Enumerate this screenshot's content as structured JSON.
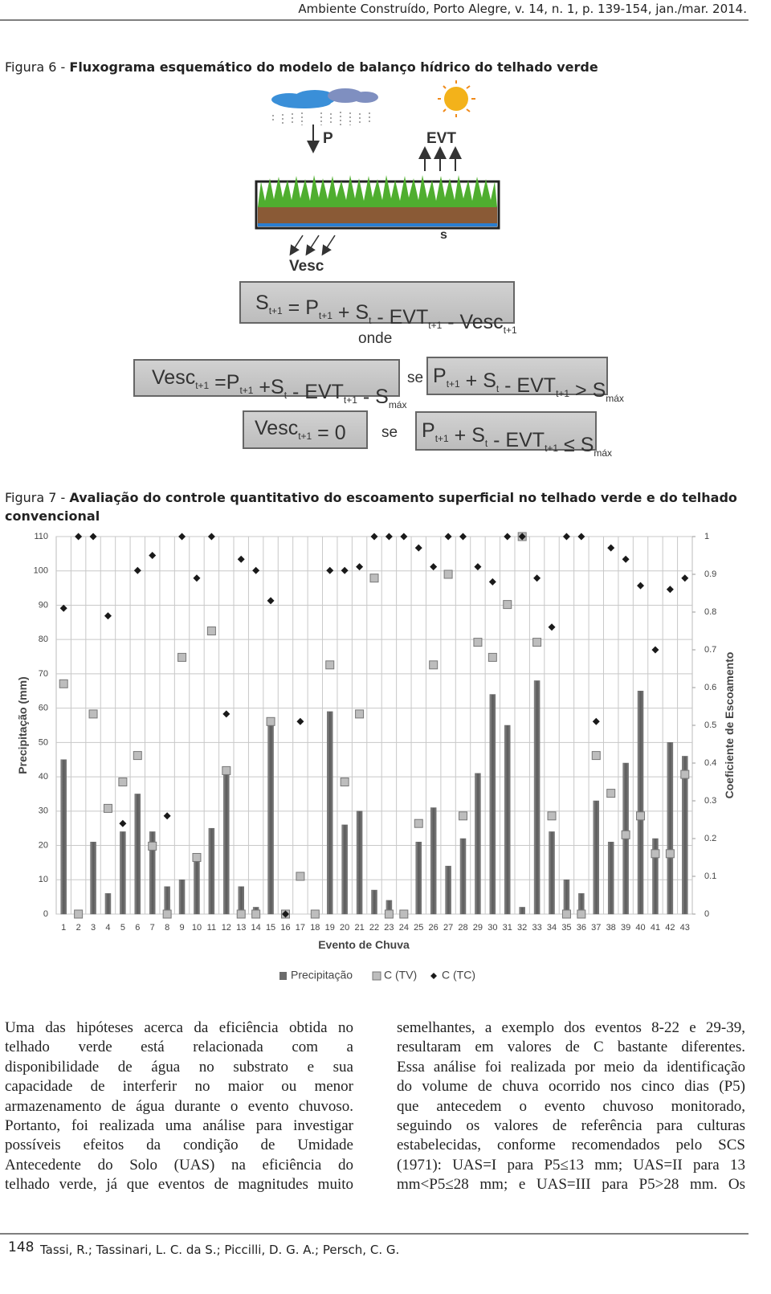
{
  "header": {
    "running_head": "Ambiente Construído, Porto Alegre, v. 14, n. 1, p. 139-154, jan./mar. 2014."
  },
  "figure6": {
    "label": "Figura 6 -",
    "title": "Fluxograma esquemático do modelo de balanço hídrico do telhado verde",
    "labels": {
      "P": "P",
      "EVT": "EVT",
      "s": "s",
      "Vesc": "Vesc",
      "onde": "onde",
      "se1": "se",
      "se2": "se"
    },
    "equations": [
      [
        {
          "text": "S",
          "sub": "t+1"
        },
        {
          "text": " = P",
          "sub": "t+1"
        },
        {
          "text": " + S",
          "sub": "t"
        },
        {
          "text": " - EVT",
          "sub": "t+1"
        },
        {
          "text": " - Vesc",
          "sub": "t+1"
        }
      ],
      [
        {
          "text": "Vesc",
          "sub": "t+1"
        },
        {
          "text": " =P",
          "sub": "t+1"
        },
        {
          "text": " +S",
          "sub": "t"
        },
        {
          "text": " - EVT",
          "sub": "t+1"
        },
        {
          "text": " - S",
          "sub": "máx"
        }
      ],
      [
        {
          "text": "P",
          "sub": "t+1"
        },
        {
          "text": " + S",
          "sub": "t"
        },
        {
          "text": " - EVT",
          "sub": "t+1"
        },
        {
          "text": " > S",
          "sub": "máx"
        }
      ],
      [
        {
          "text": "Vesc",
          "sub": "t+1"
        },
        {
          "text": " = 0"
        }
      ],
      [
        {
          "text": "P",
          "sub": "t+1"
        },
        {
          "text": " + S",
          "sub": "t"
        },
        {
          "text": " - EVT",
          "sub": "t+1"
        },
        {
          "text": " ≤ S",
          "sub": "máx"
        }
      ]
    ]
  },
  "figure7": {
    "label": "Figura 7 -",
    "title": "Avaliação do controle quantitativo do escoamento superficial no telhado verde e do telhado convencional"
  },
  "chart_data": {
    "type": "bar",
    "xlabel": "Evento de Chuva",
    "ylabel": "Precipitação (mm)",
    "y2label": "Coeficiente de Escoamento",
    "categories": [
      "1",
      "2",
      "3",
      "4",
      "5",
      "6",
      "7",
      "8",
      "9",
      "10",
      "11",
      "12",
      "13",
      "14",
      "15",
      "16",
      "17",
      "18",
      "19",
      "20",
      "21",
      "22",
      "23",
      "24",
      "25",
      "26",
      "27",
      "28",
      "29",
      "30",
      "31",
      "32",
      "33",
      "34",
      "35",
      "36",
      "37",
      "38",
      "39",
      "40",
      "41",
      "42",
      "43"
    ],
    "series": [
      {
        "name": "Precipitação",
        "type": "bar",
        "color": "#6b6b6b",
        "values": [
          45,
          0,
          21,
          6,
          24,
          35,
          24,
          8,
          10,
          16,
          25,
          41,
          8,
          2,
          56,
          0,
          0,
          0,
          59,
          26,
          30,
          7,
          4,
          0,
          21,
          31,
          14,
          22,
          41,
          64,
          55,
          2,
          68,
          24,
          10,
          6,
          33,
          21,
          44,
          65,
          22,
          50,
          46
        ]
      },
      {
        "name": "C (TV)",
        "type": "square",
        "axis": "y2",
        "color": "#bdbdbd",
        "values": [
          0.61,
          0,
          0.53,
          0.28,
          0.35,
          0.42,
          0.18,
          0,
          0.68,
          0.15,
          0.75,
          0.38,
          0,
          0,
          0.51,
          0,
          0.1,
          0,
          0.66,
          0.35,
          0.53,
          0.89,
          0,
          0,
          0.24,
          0.66,
          0.9,
          0.26,
          0.72,
          0.68,
          0.82,
          1,
          0.72,
          0.26,
          0,
          0,
          0.42,
          0.32,
          0.21,
          0.26,
          0.16,
          0.16,
          0.37
        ]
      },
      {
        "name": "C (TC)",
        "type": "diamond",
        "axis": "y2",
        "color": "#1a1a1a",
        "values": [
          0.81,
          1,
          1,
          0.79,
          0.24,
          0.91,
          0.95,
          0.26,
          1,
          0.89,
          1,
          0.53,
          0.94,
          0.91,
          0.83,
          0,
          0.51,
          null,
          0.91,
          0.91,
          0.92,
          1,
          1,
          1,
          0.97,
          0.92,
          1,
          1,
          0.92,
          0.88,
          1,
          1,
          0.89,
          0.76,
          1,
          1,
          0.51,
          0.97,
          0.94,
          0.87,
          0.7,
          0.86,
          0.89
        ]
      }
    ],
    "ylim": [
      0,
      110
    ],
    "yticks": [
      0,
      10,
      20,
      30,
      40,
      50,
      60,
      70,
      80,
      90,
      100,
      110
    ],
    "y2lim": [
      0,
      1
    ],
    "y2ticks": [
      0,
      0.1,
      0.2,
      0.3,
      0.4,
      0.5,
      0.6,
      0.7,
      0.8,
      0.9,
      1
    ],
    "grid": true,
    "legend": "bottom"
  },
  "body": {
    "left": [
      "Uma das hipóteses acerca da eficiência obtida no",
      "telhado verde está relacionada com a",
      "disponibilidade de água no substrato e sua",
      "capacidade de interferir no maior ou menor",
      "armazenamento de água durante o evento chuvoso.",
      "Portanto, foi realizada uma análise para investigar",
      "possíveis efeitos da condição de Umidade",
      "Antecedente do Solo (UAS) na eficiência do",
      "telhado verde, já que eventos de magnitudes muito"
    ],
    "right": [
      "semelhantes, a exemplo dos eventos 8-22 e 29-39,",
      "resultaram em valores de C bastante diferentes.",
      "Essa análise foi realizada por meio da identificação",
      "do volume de chuva ocorrido nos cinco dias (P5)",
      "que antecedem o evento chuvoso monitorado,",
      "seguindo os valores de referência para culturas",
      "estabelecidas, conforme recomendados pelo SCS",
      "(1971): UAS=I para P5≤13 mm; UAS=II para 13",
      "mm<P5≤28 mm; e UAS=III para P5>28 mm. Os"
    ]
  },
  "footer": {
    "page": "148",
    "authors": "Tassi, R.; Tassinari, L. C. da S.; Piccilli, D. G. A.; Persch, C. G."
  }
}
